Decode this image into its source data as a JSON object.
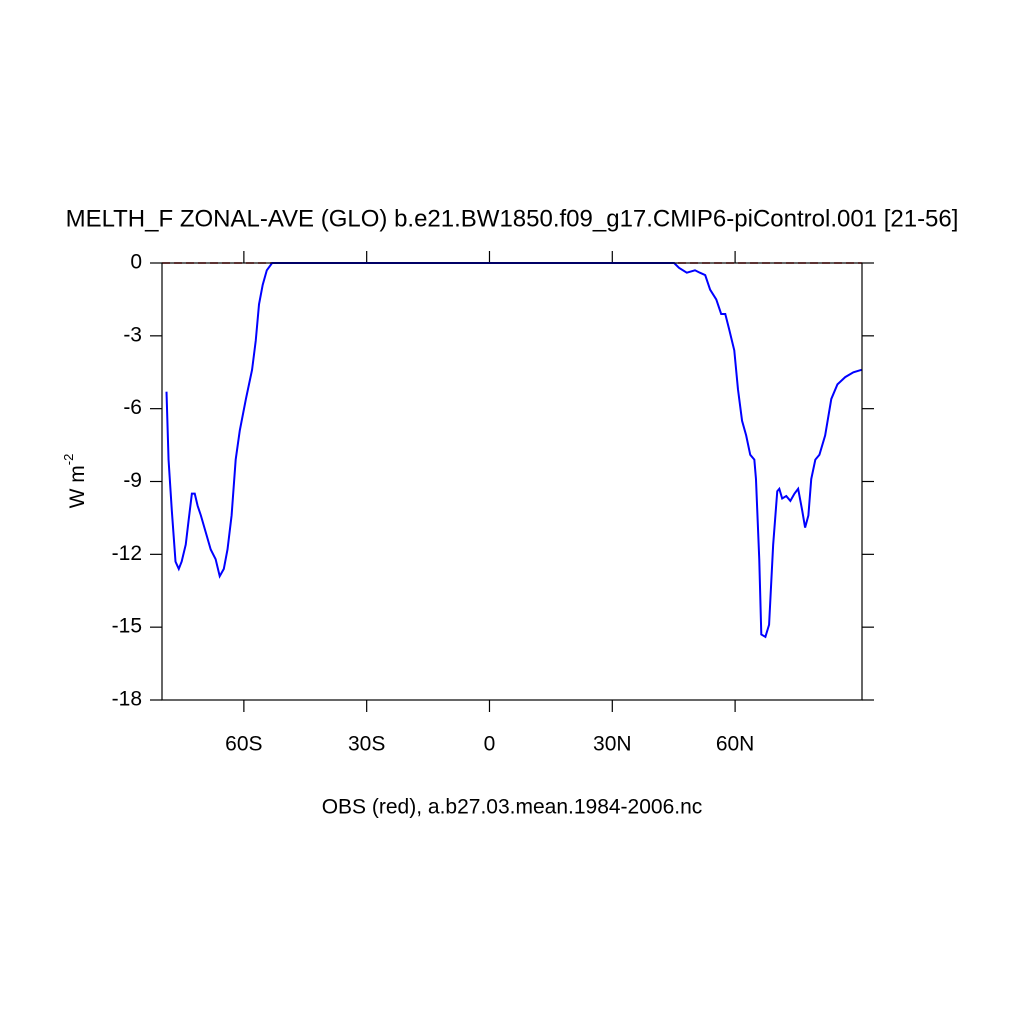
{
  "chart_data": {
    "type": "line",
    "title": "MELTH_F ZONAL-AVE (GLO) b.e21.BW1850.f09_g17.CMIP6-piControl.001 [21-56]",
    "xlabel": "OBS (red), a.b27.03.mean.1984-2006.nc",
    "ylabel": {
      "text": "W m",
      "superscript": "-2"
    },
    "xlim": [
      -80,
      91
    ],
    "ylim": [
      -18,
      0
    ],
    "xticks": [
      {
        "value": -60,
        "label": "60S"
      },
      {
        "value": -30,
        "label": "30S"
      },
      0,
      {
        "value": 30,
        "label": "30N"
      },
      {
        "value": 60,
        "label": "60N"
      }
    ],
    "yticks": [
      0,
      -3,
      -6,
      -9,
      -12,
      -15,
      -18
    ],
    "reference_line": {
      "value": 0,
      "color": "#cc0000",
      "dashed": true
    },
    "x": [
      -78.9,
      -78.4,
      -77.6,
      -76.7,
      -75.9,
      -75.2,
      -74.2,
      -73.5,
      -72.7,
      -72.0,
      -71.3,
      -70.5,
      -69.3,
      -68.1,
      -66.9,
      -65.9,
      -64.9,
      -64.0,
      -63.0,
      -62.0,
      -61.0,
      -59.5,
      -58.0,
      -57.1,
      -56.3,
      -55.4,
      -54.4,
      -53.1,
      45.1,
      46.3,
      48.2,
      50.2,
      51.4,
      52.7,
      53.9,
      55.4,
      56.6,
      57.6,
      58.5,
      59.8,
      60.7,
      61.7,
      62.7,
      63.7,
      64.7,
      65.1,
      65.9,
      66.4,
      67.4,
      68.3,
      69.3,
      70.3,
      70.8,
      71.5,
      72.5,
      73.5,
      74.5,
      75.4,
      76.4,
      77.1,
      77.9,
      78.6,
      79.6,
      80.6,
      82.0,
      83.5,
      85.0,
      86.9,
      88.9,
      90.9
    ],
    "series": [
      {
        "color": "#0000ff",
        "values": [
          -5.3,
          -8.1,
          -10.2,
          -12.3,
          -12.6,
          -12.3,
          -11.6,
          -10.6,
          -9.5,
          -9.5,
          -10.0,
          -10.4,
          -11.1,
          -11.8,
          -12.2,
          -12.9,
          -12.6,
          -11.8,
          -10.4,
          -8.1,
          -6.9,
          -5.6,
          -4.4,
          -3.2,
          -1.7,
          -0.9,
          -0.3,
          0,
          0,
          -0.2,
          -0.4,
          -0.3,
          -0.4,
          -0.5,
          -1.1,
          -1.5,
          -2.1,
          -2.1,
          -2.7,
          -3.6,
          -5.2,
          -6.5,
          -7.1,
          -7.9,
          -8.1,
          -8.9,
          -12.2,
          -15.3,
          -15.4,
          -14.9,
          -11.6,
          -9.4,
          -9.3,
          -9.7,
          -9.6,
          -9.8,
          -9.5,
          -9.3,
          -10.2,
          -10.9,
          -10.4,
          -8.9,
          -8.1,
          -7.9,
          -7.1,
          -5.6,
          -5.0,
          -4.7,
          -4.5,
          -4.4
        ]
      }
    ]
  }
}
